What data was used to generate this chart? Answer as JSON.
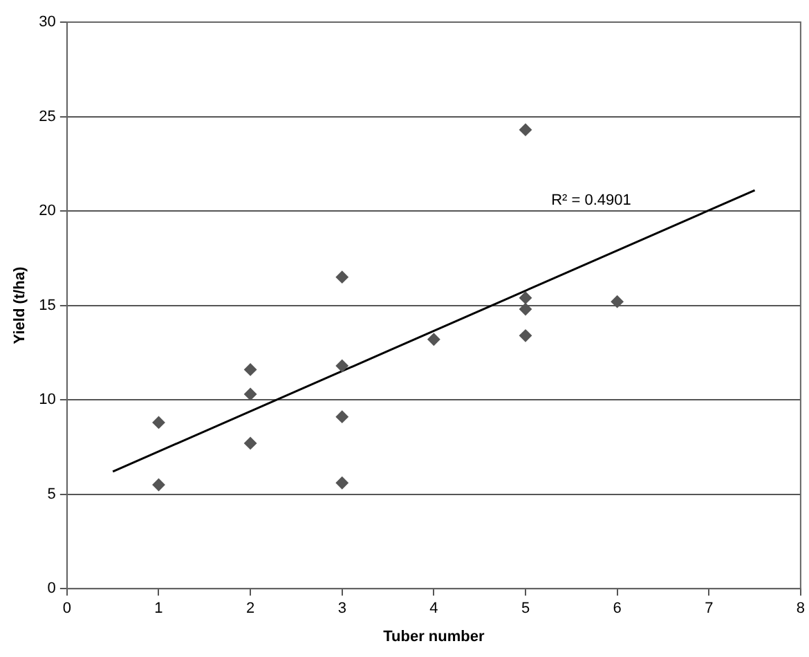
{
  "chart_data": {
    "type": "scatter",
    "xlabel": "Tuber number",
    "ylabel": "Yield (t/ha)",
    "xlim": [
      0,
      8
    ],
    "xticks": [
      0,
      1,
      2,
      3,
      4,
      5,
      6,
      7,
      8
    ],
    "ylim": [
      0,
      30
    ],
    "yticks": [
      0,
      5,
      10,
      15,
      20,
      25,
      30
    ],
    "grid": "y",
    "legend": false,
    "series": [
      {
        "marker": "diamond",
        "color": "#555555",
        "x": [
          1,
          1,
          2,
          2,
          2,
          3,
          3,
          3,
          3,
          4,
          5,
          5,
          5,
          5,
          6
        ],
        "values": [
          8.8,
          5.5,
          11.6,
          10.3,
          7.7,
          16.5,
          11.8,
          9.1,
          5.6,
          13.2,
          24.3,
          15.4,
          14.8,
          13.4,
          15.2
        ]
      },
      {
        "type": "line",
        "marker": "none",
        "color": "#000000",
        "x": [
          0.5,
          7.5
        ],
        "values": [
          6.2,
          21.1
        ]
      }
    ],
    "annotations": [
      "R² = 0.4901"
    ]
  }
}
